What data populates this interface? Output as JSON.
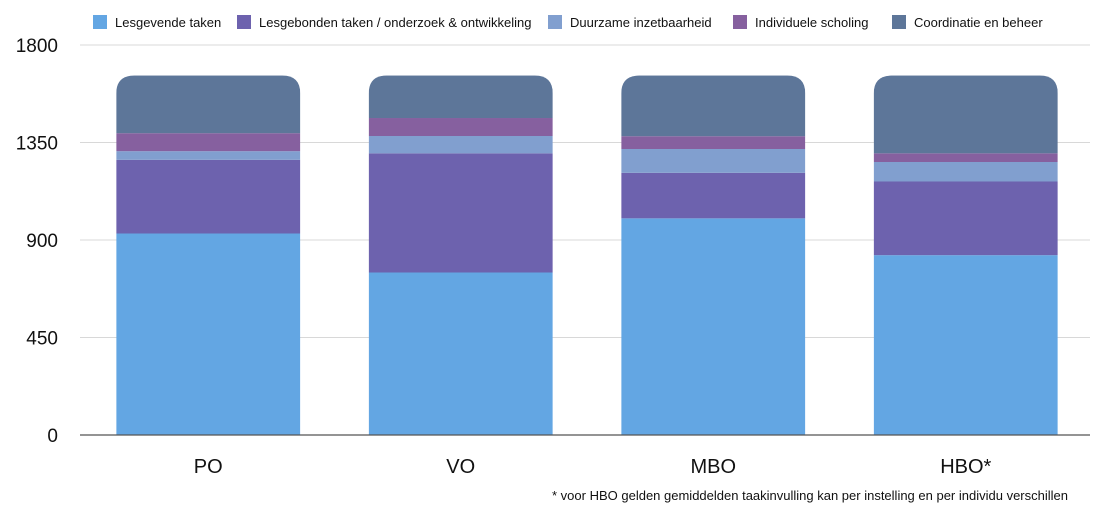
{
  "chart_data": {
    "type": "bar",
    "stacked": true,
    "categories": [
      "PO",
      "VO",
      "MBO",
      "HBO*"
    ],
    "series": [
      {
        "name": "Lesgevende taken",
        "color": "#63a6e3",
        "values": [
          930,
          750,
          1000,
          830
        ]
      },
      {
        "name": "Lesgebonden taken / onderzoek & ontwikkeling",
        "color": "#6d62ae",
        "values": [
          340,
          550,
          210,
          340
        ]
      },
      {
        "name": "Duurzame inzetbaarheid",
        "color": "#819fcf",
        "values": [
          40,
          80,
          110,
          90
        ]
      },
      {
        "name": "Individuele scholing",
        "color": "#86609f",
        "values": [
          83,
          83,
          59,
          40
        ]
      },
      {
        "name": "Coordinatie en beheer",
        "color": "#5d7699",
        "values": [
          266,
          196,
          280,
          359
        ]
      }
    ],
    "ylim": [
      0,
      1800
    ],
    "yticks": [
      0,
      450,
      900,
      1350,
      1800
    ],
    "grid": true,
    "legend_position": "top",
    "xlabel": "",
    "ylabel": "",
    "title": "",
    "footnote": "* voor HBO gelden gemiddelden taakinvulling kan per instelling en per individu verschillen"
  }
}
